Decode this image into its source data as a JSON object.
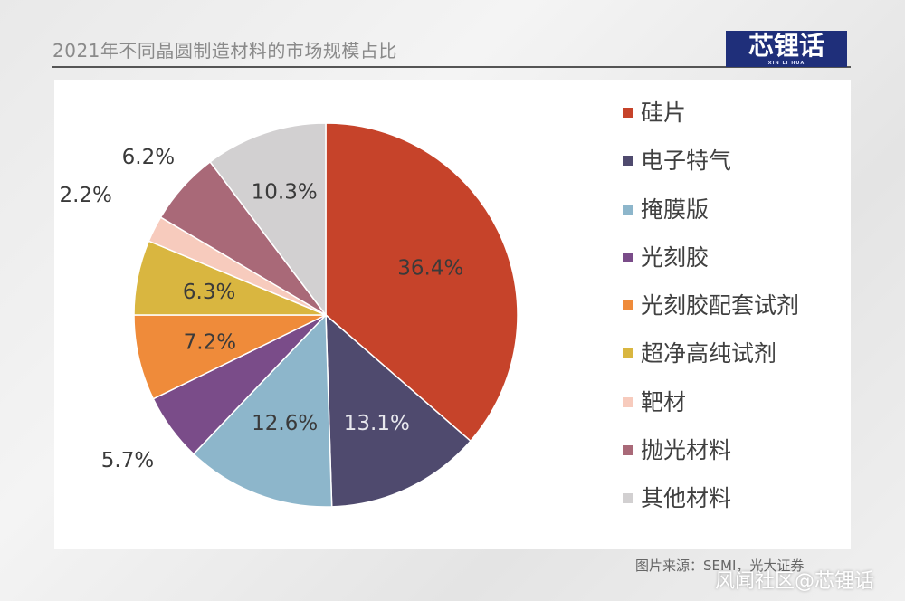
{
  "header": {
    "title": "2021年不同晶圆制造材料的市场规模占比",
    "logo_text": "芯锂话",
    "logo_sub": "XIN LI HUA"
  },
  "footer": {
    "source": "图片来源：SEMI，光大证券",
    "watermark": "风闻社区@芯锂话"
  },
  "chart_data": {
    "type": "pie",
    "title": "2021年不同晶圆制造材料的市场规模占比",
    "legend_position": "right",
    "start_angle_deg": 0,
    "direction": "clockwise",
    "slices": [
      {
        "name": "硅片",
        "value": 36.4,
        "label": "36.4%",
        "color": "#c6432a"
      },
      {
        "name": "电子特气",
        "value": 13.1,
        "label": "13.1%",
        "color": "#4f4a6e"
      },
      {
        "name": "掩膜版",
        "value": 12.6,
        "label": "12.6%",
        "color": "#8db6cb"
      },
      {
        "name": "光刻胶",
        "value": 5.7,
        "label": "5.7%",
        "color": "#7a4c89"
      },
      {
        "name": "光刻胶配套试剂",
        "value": 7.2,
        "label": "7.2%",
        "color": "#ef8b3a"
      },
      {
        "name": "超净高纯试剂",
        "value": 6.3,
        "label": "6.3%",
        "color": "#d9b640"
      },
      {
        "name": "靶材",
        "value": 2.2,
        "label": "2.2%",
        "color": "#f7cbbd"
      },
      {
        "name": "抛光材料",
        "value": 6.2,
        "label": "6.2%",
        "color": "#a96978"
      },
      {
        "name": "其他材料",
        "value": 10.3,
        "label": "10.3%",
        "color": "#d2d0d1"
      }
    ]
  }
}
